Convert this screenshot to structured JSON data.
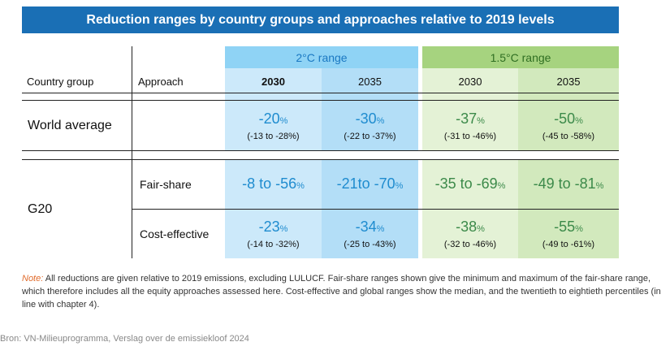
{
  "title": "Reduction ranges by country groups and approaches relative to 2019 levels",
  "headers": {
    "country_group": "Country group",
    "approach": "Approach",
    "range_2c": "2°C range",
    "range_15c": "1.5°C range",
    "y2030_a": "2030",
    "y2035_a": "2035",
    "y2030_b": "2030",
    "y2035_b": "2035"
  },
  "rows": {
    "world": {
      "label": "World average",
      "approach": "",
      "c2_2030": {
        "main": "-20",
        "pct": "%",
        "range": "(-13 to -28%)"
      },
      "c2_2035": {
        "main": "-30",
        "pct": "%",
        "range": "(-22 to -37%)"
      },
      "c15_2030": {
        "main": "-37",
        "pct": "%",
        "range": "(-31 to -46%)"
      },
      "c15_2035": {
        "main": "-50",
        "pct": "%",
        "range": "(-45 to -58%)"
      }
    },
    "g20": {
      "label": "G20",
      "fair": {
        "approach": "Fair-share",
        "c2_2030": {
          "main": "-8 to -56",
          "pct": "%"
        },
        "c2_2035": {
          "main": "-21to -70",
          "pct": "%"
        },
        "c15_2030": {
          "main": "-35 to -69",
          "pct": "%"
        },
        "c15_2035": {
          "main": "-49 to -81",
          "pct": "%"
        }
      },
      "cost": {
        "approach": "Cost-effective",
        "c2_2030": {
          "main": "-23",
          "pct": "%",
          "range": "(-14 to -32%)"
        },
        "c2_2035": {
          "main": "-34",
          "pct": "%",
          "range": "(-25 to -43%)"
        },
        "c15_2030": {
          "main": "-38",
          "pct": "%",
          "range": "(-32 to -46%)"
        },
        "c15_2035": {
          "main": "-55",
          "pct": "%",
          "range": "(-49 to -61%)"
        }
      }
    }
  },
  "note": {
    "label": "Note:",
    "text": " All reductions are given relative to 2019 emissions, excluding LULUCF. Fair-share ranges shown give the minimum and maximum of the fair-share range, which therefore includes all the equity approaches assessed here. Cost-effective and global ranges show the median, and the twentieth to eightieth percentiles (in line with chapter 4)."
  },
  "source": "Bron: VN-Milieuprogramma, Verslag over de emissiekloof 2024",
  "colors": {
    "title_bg": "#1a6fb5",
    "blue_header": "#8fd3f5",
    "green_header": "#a6d37f",
    "blue_value": "#1f8ccf",
    "green_value": "#3c8a4a",
    "note_label": "#e06a2a"
  }
}
